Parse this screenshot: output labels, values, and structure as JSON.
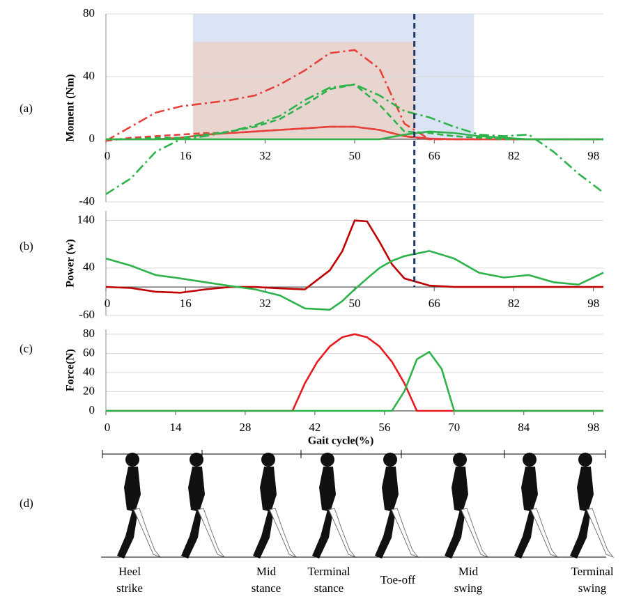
{
  "chart_data": [
    {
      "type": "line",
      "panel_label": "(a)",
      "ylabel": "Moment (Nm)",
      "xlim": [
        0,
        100
      ],
      "ylim": [
        -40,
        80
      ],
      "xticks": [
        0,
        16,
        32,
        50,
        66,
        82,
        98
      ],
      "yticks": [
        -40,
        0,
        40,
        80
      ],
      "grid": true,
      "shaded_regions": [
        {
          "x": [
            17.5,
            74
          ],
          "y": [
            0,
            80
          ],
          "color": "#dbe4f4"
        },
        {
          "x": [
            17.5,
            62
          ],
          "y": [
            0,
            62
          ],
          "color": "#e8d5d0"
        }
      ],
      "x": [
        0,
        5,
        10,
        15,
        20,
        25,
        30,
        35,
        40,
        45,
        50,
        55,
        60,
        65,
        70,
        75,
        80,
        85,
        90,
        95,
        100
      ],
      "series": [
        {
          "color": "#e8413c",
          "style": "dashdot",
          "values": [
            -1,
            8,
            17,
            21,
            23,
            25,
            28,
            35,
            44,
            55,
            57,
            45,
            10,
            0,
            0,
            0,
            0,
            0,
            0,
            0,
            0
          ]
        },
        {
          "color": "#e8413c",
          "style": "dashed",
          "values": [
            -1,
            1,
            2,
            3,
            4,
            4,
            5,
            6,
            7,
            8,
            8,
            6,
            2,
            0,
            0,
            0,
            0,
            0,
            0,
            0,
            0
          ]
        },
        {
          "color": "#e8413c",
          "style": "solid",
          "values": [
            0,
            0,
            0,
            1,
            3,
            4,
            5,
            6,
            7,
            8,
            8,
            6,
            2,
            0.5,
            0,
            0,
            0,
            0,
            0,
            0,
            0
          ]
        },
        {
          "color": "#2db34a",
          "style": "dashdot",
          "values": [
            -35,
            -25,
            -8,
            0,
            2,
            5,
            9,
            15,
            25,
            33,
            35,
            28,
            18,
            14,
            8,
            3,
            2,
            3,
            -8,
            -22,
            -34
          ]
        },
        {
          "color": "#2db34a",
          "style": "dashed",
          "values": [
            0,
            0,
            1,
            1,
            3,
            5,
            8,
            13,
            22,
            32,
            35,
            22,
            5,
            4,
            2,
            1,
            0,
            0,
            0,
            0,
            0
          ]
        },
        {
          "color": "#2db34a",
          "style": "solid",
          "values": [
            0,
            0,
            0,
            0,
            0,
            0,
            0,
            0,
            0,
            0,
            0,
            0,
            3,
            5,
            4,
            2,
            1,
            0,
            0,
            0,
            0
          ]
        }
      ]
    },
    {
      "type": "line",
      "panel_label": "(b)",
      "ylabel": "Power (w)",
      "xlim": [
        0,
        100
      ],
      "ylim": [
        -60,
        160
      ],
      "xticks": [
        0,
        16,
        32,
        50,
        66,
        82,
        98
      ],
      "yticks": [
        -60,
        40,
        140
      ],
      "grid": true,
      "x": [
        0,
        5,
        10,
        15,
        20,
        25,
        30,
        35,
        40,
        45,
        47.5,
        50,
        52.5,
        55,
        57.5,
        60,
        65,
        70,
        75,
        80,
        85,
        90,
        95,
        100
      ],
      "series": [
        {
          "color": "#c00000",
          "style": "solid",
          "values": [
            0,
            -2,
            -10,
            -12,
            -5,
            0,
            0,
            -3,
            -5,
            35,
            75,
            140,
            138,
            95,
            48,
            18,
            3,
            0,
            0,
            0,
            0,
            0,
            0,
            0
          ]
        },
        {
          "color": "#2db34a",
          "style": "solid",
          "values": [
            60,
            45,
            25,
            18,
            10,
            2,
            -5,
            -18,
            -45,
            -48,
            -30,
            -5,
            18,
            40,
            55,
            65,
            76,
            60,
            30,
            20,
            25,
            10,
            5,
            30
          ]
        }
      ]
    },
    {
      "type": "line",
      "panel_label": "(c)",
      "ylabel": "Force(N)",
      "xlabel": "Gait cycle(%)",
      "xlim": [
        0,
        100
      ],
      "ylim": [
        0,
        85
      ],
      "xticks": [
        0,
        14,
        28,
        42,
        56,
        70,
        84,
        98
      ],
      "yticks": [
        0,
        20,
        40,
        60,
        80
      ],
      "grid": true,
      "x": [
        0,
        2.5,
        5,
        7.5,
        10,
        12.5,
        15,
        17.5,
        20,
        22.5,
        25,
        27.5,
        30,
        32.5,
        35,
        37.5,
        40,
        42.5,
        45,
        47.5,
        50,
        52.5,
        55,
        57.5,
        60,
        62.5,
        65,
        67.5,
        70,
        72.5,
        75,
        77.5,
        80,
        82.5,
        85,
        87.5,
        90,
        92.5,
        95,
        97.5,
        100
      ],
      "series": [
        {
          "color": "#e8191c",
          "style": "solid",
          "values": [
            0,
            0,
            0,
            0,
            0,
            0,
            0,
            0,
            0,
            0,
            0,
            0,
            0,
            0,
            0,
            0,
            28.8,
            51.2,
            67.2,
            76.8,
            80,
            76.8,
            67.2,
            51.2,
            28.8,
            0,
            0,
            0,
            0,
            0,
            0,
            0,
            0,
            0,
            0,
            0,
            0,
            0,
            0,
            0,
            0
          ]
        },
        {
          "color": "#2db34a",
          "style": "solid",
          "values": [
            0,
            0,
            0,
            0,
            0,
            0,
            0,
            0,
            0,
            0,
            0,
            0,
            0,
            0,
            0,
            0,
            0,
            0,
            0,
            0,
            0,
            0,
            0,
            0,
            20.5,
            53.8,
            61.5,
            43.6,
            0,
            0,
            0,
            0,
            0,
            0,
            0,
            0,
            0,
            0,
            0,
            0,
            0
          ]
        }
      ]
    }
  ],
  "toe_off_line": {
    "x": 62,
    "color": "#1f3864"
  },
  "gait_panel": {
    "panel_label": "(d)",
    "phases": [
      {
        "lines": [
          "Heel",
          "strike"
        ]
      },
      {
        "lines": [
          "Mid",
          "stance"
        ]
      },
      {
        "lines": [
          "Terminal",
          "stance"
        ]
      },
      {
        "lines": [
          "Toe-off"
        ]
      },
      {
        "lines": [
          "Mid",
          "swing"
        ]
      },
      {
        "lines": [
          "Terminal",
          "swing"
        ]
      }
    ]
  }
}
